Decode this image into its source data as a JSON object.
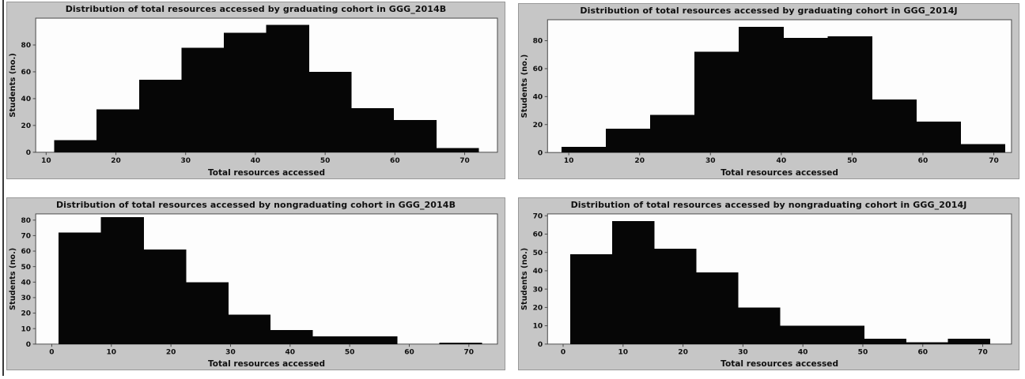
{
  "figure": {
    "panel_bg": "#c6c6c6",
    "panel_border": "#989898",
    "plot_bg": "#fdfdfd",
    "bar_color": "#060606",
    "axis_color": "#4a4a4a",
    "text_color": "#101010"
  },
  "chart_data": [
    {
      "type": "bar",
      "subtype": "histogram",
      "title": "Distribution of total resources accessed by graduating cohort in GGG_2014B",
      "xlabel": "Total resources accessed",
      "ylabel": "Students (no.)",
      "bin_start": 11.2,
      "bin_width": 6.08,
      "counts": [
        9,
        32,
        54,
        78,
        89,
        95,
        60,
        33,
        24,
        3
      ],
      "xticks": [
        10,
        20,
        30,
        40,
        50,
        60,
        70
      ],
      "yticks": [
        0,
        20,
        40,
        60,
        80
      ],
      "xlim": [
        8.5,
        74.7
      ],
      "ylim": [
        0,
        100
      ],
      "grid": false,
      "legend": "none"
    },
    {
      "type": "bar",
      "subtype": "histogram",
      "title": "Distribution of total resources accessed by graduating cohort in GGG_2014J",
      "xlabel": "Total resources accessed",
      "ylabel": "Students (no.)",
      "bin_start": 9.0,
      "bin_width": 6.26,
      "counts": [
        4,
        17,
        27,
        72,
        90,
        82,
        83,
        38,
        22,
        6
      ],
      "xticks": [
        10,
        20,
        30,
        40,
        50,
        60,
        70
      ],
      "yticks": [
        0,
        20,
        40,
        60,
        80
      ],
      "xlim": [
        7.0,
        72.5
      ],
      "ylim": [
        0,
        95
      ],
      "grid": false,
      "legend": "none"
    },
    {
      "type": "bar",
      "subtype": "histogram",
      "title": "Distribution of total resources accessed by nongraduating cohort in GGG_2014B",
      "xlabel": "Total resources accessed",
      "ylabel": "Students (no.)",
      "bin_start": 1.2,
      "bin_width": 7.1,
      "counts": [
        72,
        82,
        61,
        40,
        19,
        9,
        5,
        5,
        0,
        1
      ],
      "xticks": [
        0,
        10,
        20,
        30,
        40,
        50,
        60,
        70
      ],
      "yticks": [
        0,
        10,
        20,
        30,
        40,
        50,
        60,
        70,
        80
      ],
      "xlim": [
        -2.7,
        74.8
      ],
      "ylim": [
        0,
        84
      ],
      "grid": false,
      "legend": "none"
    },
    {
      "type": "bar",
      "subtype": "histogram",
      "title": "Distribution of total resources accessed by nongraduating cohort in GGG_2014J",
      "xlabel": "Total resources accessed",
      "ylabel": "Students (no.)",
      "bin_start": 1.2,
      "bin_width": 7.0,
      "counts": [
        49,
        67,
        52,
        39,
        20,
        10,
        10,
        3,
        1,
        3
      ],
      "xticks": [
        0,
        10,
        20,
        30,
        40,
        50,
        60,
        70
      ],
      "yticks": [
        0,
        10,
        20,
        30,
        40,
        50,
        60,
        70
      ],
      "xlim": [
        -2.6,
        74.8
      ],
      "ylim": [
        0,
        71
      ],
      "grid": false,
      "legend": "none"
    }
  ]
}
